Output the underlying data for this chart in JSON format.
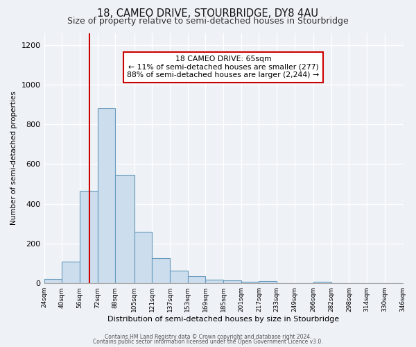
{
  "title": "18, CAMEO DRIVE, STOURBRIDGE, DY8 4AU",
  "subtitle": "Size of property relative to semi-detached houses in Stourbridge",
  "xlabel": "Distribution of semi-detached houses by size in Stourbridge",
  "ylabel": "Number of semi-detached properties",
  "bin_labels": [
    "24sqm",
    "40sqm",
    "56sqm",
    "72sqm",
    "88sqm",
    "105sqm",
    "121sqm",
    "137sqm",
    "153sqm",
    "169sqm",
    "185sqm",
    "201sqm",
    "217sqm",
    "233sqm",
    "249sqm",
    "266sqm",
    "282sqm",
    "298sqm",
    "314sqm",
    "330sqm",
    "346sqm"
  ],
  "bin_edges": [
    24,
    40,
    56,
    72,
    88,
    105,
    121,
    137,
    153,
    169,
    185,
    201,
    217,
    233,
    249,
    266,
    282,
    298,
    314,
    330,
    346
  ],
  "bar_values": [
    20,
    110,
    465,
    880,
    545,
    260,
    125,
    62,
    35,
    18,
    14,
    8,
    12,
    2,
    0,
    8,
    0,
    0,
    0,
    0
  ],
  "bar_color": "#ccdded",
  "bar_edge_color": "#6699bb",
  "property_size": 65,
  "red_line_color": "#cc0000",
  "annotation_title": "18 CAMEO DRIVE: 65sqm",
  "annotation_line1": "← 11% of semi-detached houses are smaller (277)",
  "annotation_line2": "88% of semi-detached houses are larger (2,244) →",
  "annotation_box_color": "#ffffff",
  "annotation_box_edge": "#cc0000",
  "ylim": [
    0,
    1260
  ],
  "yticks": [
    0,
    200,
    400,
    600,
    800,
    1000,
    1200
  ],
  "footer1": "Contains HM Land Registry data © Crown copyright and database right 2024.",
  "footer2": "Contains public sector information licensed under the Open Government Licence v3.0.",
  "bg_color": "#eef2f7",
  "plot_bg_color": "#eef2f7",
  "grid_color": "#ffffff",
  "title_fontsize": 10.5,
  "subtitle_fontsize": 9
}
